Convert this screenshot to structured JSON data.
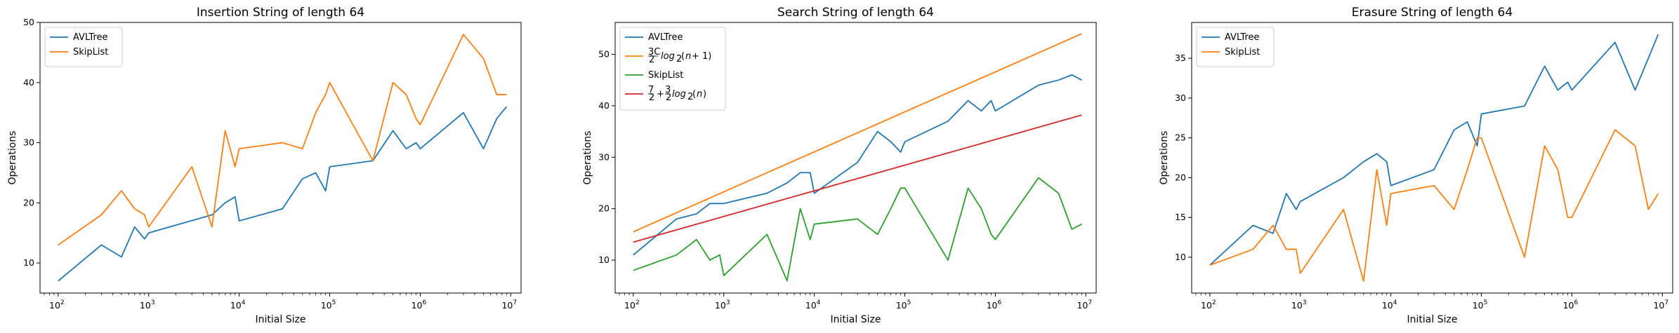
{
  "chart_data": [
    {
      "type": "line",
      "title": "Insertion String of length 64",
      "xlabel": "Initial Size",
      "ylabel": "Operations",
      "xscale": "log",
      "xlim": [
        63,
        13000000
      ],
      "ylim": [
        5,
        50
      ],
      "xticks": [
        {
          "value": 100,
          "base": "10",
          "exp": "2"
        },
        {
          "value": 1000,
          "base": "10",
          "exp": "3"
        },
        {
          "value": 10000,
          "base": "10",
          "exp": "4"
        },
        {
          "value": 100000,
          "base": "10",
          "exp": "5"
        },
        {
          "value": 1000000,
          "base": "10",
          "exp": "6"
        },
        {
          "value": 10000000,
          "base": "10",
          "exp": "7"
        }
      ],
      "yticks": [
        10,
        20,
        30,
        40,
        50
      ],
      "grid": false,
      "legend_position": "top-left",
      "series": [
        {
          "name": "AVLTree",
          "color": "#1f77b4",
          "x": [
            100,
            300,
            500,
            700,
            900,
            1000,
            5000,
            7000,
            9000,
            10000,
            30000,
            50000,
            70000,
            90000,
            100000,
            300000,
            500000,
            700000,
            900000,
            1000000,
            3000000,
            5000000,
            7000000,
            9000000
          ],
          "y": [
            7,
            13,
            11,
            16,
            14,
            15,
            18,
            20,
            21,
            17,
            19,
            24,
            25,
            22,
            26,
            27,
            32,
            29,
            30,
            29,
            35,
            29,
            34,
            36
          ]
        },
        {
          "name": "SkipList",
          "color": "#ff7f0e",
          "x": [
            100,
            300,
            500,
            700,
            900,
            1000,
            3000,
            5000,
            7000,
            9000,
            10000,
            30000,
            50000,
            70000,
            90000,
            100000,
            300000,
            500000,
            700000,
            900000,
            1000000,
            3000000,
            5000000,
            7000000,
            9000000
          ],
          "y": [
            13,
            18,
            22,
            19,
            18,
            16,
            26,
            16,
            32,
            26,
            29,
            30,
            29,
            35,
            38,
            40,
            27,
            40,
            38,
            34,
            33,
            48,
            44,
            38,
            38
          ]
        }
      ]
    },
    {
      "type": "line",
      "title": "Search String of length 64",
      "xlabel": "Initial Size",
      "ylabel": "Operations",
      "xscale": "log",
      "xlim": [
        63,
        13000000
      ],
      "ylim": [
        3.6,
        56.2
      ],
      "xticks": [
        {
          "value": 100,
          "base": "10",
          "exp": "2"
        },
        {
          "value": 1000,
          "base": "10",
          "exp": "3"
        },
        {
          "value": 10000,
          "base": "10",
          "exp": "4"
        },
        {
          "value": 100000,
          "base": "10",
          "exp": "5"
        },
        {
          "value": 1000000,
          "base": "10",
          "exp": "6"
        },
        {
          "value": 10000000,
          "base": "10",
          "exp": "7"
        }
      ],
      "yticks": [
        10,
        20,
        30,
        40,
        50
      ],
      "grid": false,
      "legend_position": "top-left",
      "series": [
        {
          "name": "AVLTree",
          "color": "#1f77b4",
          "x": [
            100,
            300,
            500,
            700,
            900,
            1000,
            3000,
            5000,
            7000,
            9000,
            10000,
            30000,
            50000,
            70000,
            90000,
            100000,
            300000,
            500000,
            700000,
            900000,
            1000000,
            3000000,
            5000000,
            7000000,
            9000000
          ],
          "y": [
            11,
            18,
            19,
            21,
            21,
            21,
            23,
            25,
            27,
            27,
            23,
            29,
            35,
            33,
            31,
            33,
            37,
            41,
            39,
            41,
            39,
            44,
            45,
            46,
            45
          ]
        },
        {
          "name": "3C/2 log2(n+1)",
          "color": "#ff7f0e",
          "x": [
            100,
            9000000
          ],
          "y": [
            15.5,
            54
          ]
        },
        {
          "name": "SkipList",
          "color": "#2ca02c",
          "x": [
            100,
            300,
            500,
            700,
            900,
            1000,
            3000,
            5000,
            7000,
            9000,
            10000,
            30000,
            50000,
            70000,
            90000,
            100000,
            300000,
            500000,
            700000,
            900000,
            1000000,
            3000000,
            5000000,
            7000000,
            9000000
          ],
          "y": [
            8,
            11,
            14,
            10,
            11,
            7,
            15,
            6,
            20,
            14,
            17,
            18,
            15,
            20,
            24,
            24,
            10,
            24,
            20,
            15,
            14,
            26,
            23,
            16,
            17
          ]
        },
        {
          "name": "7/2 + 3/2 log2(n)",
          "color": "#d62728",
          "x": [
            100,
            9000000
          ],
          "y": [
            13.5,
            38.2
          ]
        }
      ]
    },
    {
      "type": "line",
      "title": "Erasure String of length 64",
      "xlabel": "Initial Size",
      "ylabel": "Operations",
      "xscale": "log",
      "xlim": [
        63,
        13000000
      ],
      "ylim": [
        5.5,
        39.5
      ],
      "xticks": [
        {
          "value": 100,
          "base": "10",
          "exp": "2"
        },
        {
          "value": 1000,
          "base": "10",
          "exp": "3"
        },
        {
          "value": 10000,
          "base": "10",
          "exp": "4"
        },
        {
          "value": 100000,
          "base": "10",
          "exp": "5"
        },
        {
          "value": 1000000,
          "base": "10",
          "exp": "6"
        },
        {
          "value": 10000000,
          "base": "10",
          "exp": "7"
        }
      ],
      "yticks": [
        10,
        15,
        20,
        25,
        30,
        35
      ],
      "grid": false,
      "legend_position": "top-left",
      "series": [
        {
          "name": "AVLTree",
          "color": "#1f77b4",
          "x": [
            100,
            300,
            500,
            700,
            900,
            1000,
            3000,
            5000,
            7000,
            9000,
            10000,
            30000,
            50000,
            70000,
            90000,
            100000,
            300000,
            500000,
            700000,
            900000,
            1000000,
            3000000,
            5000000,
            7000000,
            9000000
          ],
          "y": [
            9,
            14,
            13,
            18,
            16,
            17,
            20,
            22,
            23,
            22,
            19,
            21,
            26,
            27,
            24,
            28,
            29,
            34,
            31,
            32,
            31,
            37,
            31,
            35,
            38
          ]
        },
        {
          "name": "SkipList",
          "color": "#ff7f0e",
          "x": [
            100,
            300,
            500,
            700,
            900,
            1000,
            3000,
            5000,
            7000,
            9000,
            10000,
            30000,
            50000,
            70000,
            90000,
            100000,
            300000,
            500000,
            700000,
            900000,
            1000000,
            3000000,
            5000000,
            7000000,
            9000000
          ],
          "y": [
            9,
            11,
            14,
            11,
            11,
            8,
            16,
            7,
            21,
            14,
            18,
            19,
            16,
            21,
            25,
            25,
            10,
            24,
            21,
            15,
            15,
            26,
            24,
            16,
            18
          ]
        }
      ]
    }
  ]
}
